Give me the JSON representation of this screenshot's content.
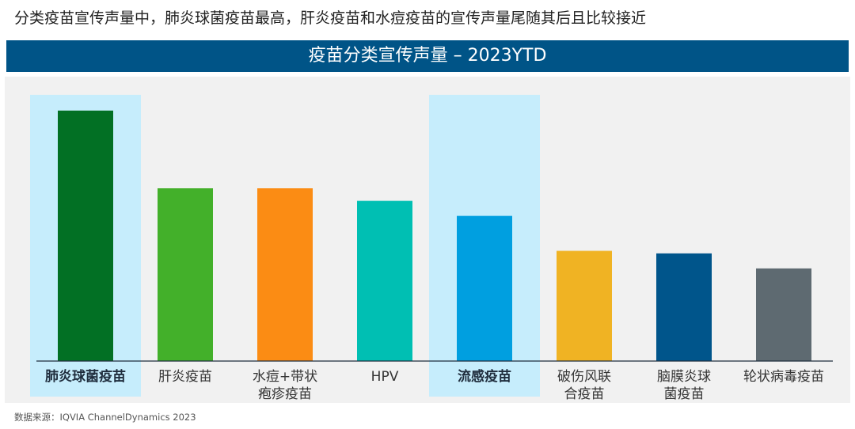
{
  "headline": "分类疫苗宣传声量中，肺炎球菌疫苗最高，肝炎疫苗和水痘疫苗的宣传声量尾随其后且比较接近",
  "banner_title": "疫苗分类宣传声量 – 2023YTD",
  "source_note": "数据来源：IQVIA ChannelDynamics 2023",
  "chart_data": {
    "type": "bar",
    "title": "疫苗分类宣传声量 – 2023YTD",
    "xlabel": "",
    "ylabel": "",
    "value_note": "relative share of voice (no axis shown; estimated, top = 100)",
    "ylim": [
      0,
      100
    ],
    "grid": false,
    "categories": [
      [
        "肺炎球菌疫苗"
      ],
      [
        "肝炎疫苗"
      ],
      [
        "水痘+带状",
        "疱疹疫苗"
      ],
      [
        "HPV"
      ],
      [
        "流感疫苗"
      ],
      [
        "破伤风联",
        "合疫苗"
      ],
      [
        "脑膜炎球",
        "菌疫苗"
      ],
      [
        "轮状病毒疫苗"
      ]
    ],
    "values": [
      100,
      69,
      69,
      64,
      58,
      44,
      43,
      37
    ],
    "colors": [
      "#027024",
      "#43b02a",
      "#fb8c14",
      "#00bfb3",
      "#009fe0",
      "#f0b323",
      "#00558b",
      "#5e6a71"
    ],
    "highlighted": [
      0,
      4
    ],
    "highlight_color": "#c6edfc"
  }
}
